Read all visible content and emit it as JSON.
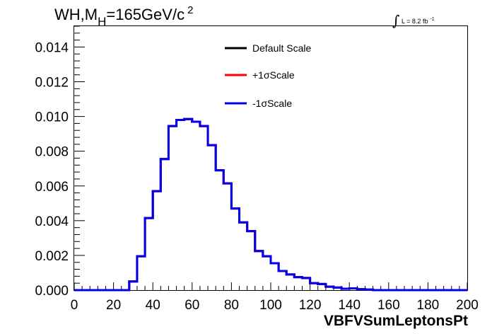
{
  "chart_data": {
    "type": "line",
    "title": {
      "prefix": "WH,M",
      "subscript": "H",
      "middle": "=165GeV/c",
      "superscript": "2"
    },
    "luminosity": {
      "integral_symbol": "∫",
      "text": "L = 8.2 fb",
      "superscript": "-1"
    },
    "xlabel": "VBFVSumLeptonsPt",
    "ylabel": "",
    "xlim": [
      0,
      200
    ],
    "ylim": [
      0,
      0.0152
    ],
    "x_ticks": [
      "0",
      "20",
      "40",
      "60",
      "80",
      "100",
      "120",
      "140",
      "160",
      "180",
      "200"
    ],
    "y_ticks": [
      "0.000",
      "0.002",
      "0.004",
      "0.006",
      "0.008",
      "0.010",
      "0.012",
      "0.014"
    ],
    "grid": false,
    "legend_position": "top-center",
    "bin_edges": [
      0,
      4,
      8,
      12,
      16,
      20,
      24,
      28,
      32,
      36,
      40,
      44,
      48,
      52,
      56,
      60,
      64,
      68,
      72,
      76,
      80,
      84,
      88,
      92,
      96,
      100,
      104,
      108,
      112,
      116,
      120,
      124,
      128,
      132,
      136,
      140,
      144,
      148,
      152,
      156,
      160,
      164,
      168,
      172,
      176,
      180,
      184,
      188,
      192,
      196,
      200
    ],
    "series": [
      {
        "name": "Default Scale",
        "color": "#000000",
        "values": [
          0,
          0,
          0,
          0,
          0,
          0,
          0,
          0.0005,
          0.00195,
          0.00415,
          0.0057,
          0.00755,
          0.00945,
          0.0098,
          0.00985,
          0.0097,
          0.00945,
          0.00835,
          0.0069,
          0.00615,
          0.0047,
          0.0039,
          0.0034,
          0.00225,
          0.00195,
          0.00155,
          0.0011,
          0.0009,
          0.00075,
          0.0007,
          0.0004,
          0.00035,
          0.0002,
          0.00015,
          8e-05,
          0.0001,
          5e-05,
          3e-05,
          0,
          0,
          0,
          0,
          0,
          0,
          0,
          0,
          0,
          0,
          0,
          0
        ]
      },
      {
        "name": "+1σScale",
        "color": "#ff0000",
        "values": [
          0,
          0,
          0,
          0,
          0,
          0,
          0,
          0.0005,
          0.00195,
          0.00415,
          0.0057,
          0.00755,
          0.00945,
          0.0098,
          0.00985,
          0.0097,
          0.00945,
          0.00835,
          0.0069,
          0.00615,
          0.0047,
          0.0039,
          0.0034,
          0.00225,
          0.00195,
          0.00155,
          0.0011,
          0.0009,
          0.00075,
          0.0007,
          0.0004,
          0.00035,
          0.0002,
          0.00015,
          8e-05,
          0.0001,
          5e-05,
          3e-05,
          0,
          0,
          0,
          0,
          0,
          0,
          0,
          0,
          0,
          0,
          0,
          0
        ]
      },
      {
        "name": "-1σScale",
        "color": "#0000ee",
        "values": [
          0,
          0,
          0,
          0,
          0,
          0,
          0,
          0.0005,
          0.00195,
          0.00415,
          0.0057,
          0.00755,
          0.00945,
          0.0098,
          0.00985,
          0.0097,
          0.00945,
          0.00835,
          0.0069,
          0.00615,
          0.0047,
          0.0039,
          0.0034,
          0.00225,
          0.00195,
          0.00155,
          0.0011,
          0.0009,
          0.00075,
          0.0007,
          0.0004,
          0.00035,
          0.0002,
          0.00015,
          8e-05,
          0.0001,
          5e-05,
          3e-05,
          0,
          0,
          0,
          0,
          0,
          0,
          0,
          0,
          0,
          0,
          0,
          0
        ]
      }
    ]
  }
}
